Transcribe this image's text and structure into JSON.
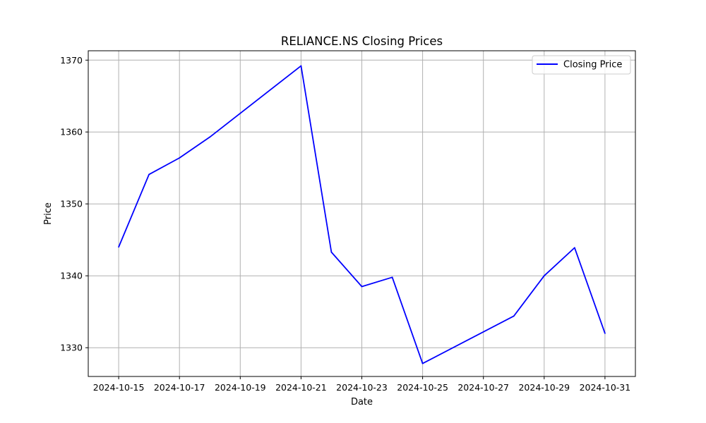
{
  "chart_data": {
    "type": "line",
    "title": "RELIANCE.NS Closing Prices",
    "xlabel": "Date",
    "ylabel": "Price",
    "x_ticks": [
      "2024-10-15",
      "2024-10-17",
      "2024-10-19",
      "2024-10-21",
      "2024-10-23",
      "2024-10-25",
      "2024-10-27",
      "2024-10-29",
      "2024-10-31"
    ],
    "y_ticks": [
      1330,
      1340,
      1350,
      1360,
      1370
    ],
    "xlim": [
      "2024-10-14",
      "2024-11-01"
    ],
    "ylim": [
      1326,
      1371.3
    ],
    "grid": true,
    "legend_position": "top-right",
    "series": [
      {
        "name": "Closing Price",
        "color": "#0000ff",
        "points": [
          {
            "x": "2024-10-15",
            "y": 1344.0
          },
          {
            "x": "2024-10-16",
            "y": 1354.1
          },
          {
            "x": "2024-10-17",
            "y": 1356.4
          },
          {
            "x": "2024-10-18",
            "y": 1359.3
          },
          {
            "x": "2024-10-21",
            "y": 1369.2
          },
          {
            "x": "2024-10-22",
            "y": 1343.3
          },
          {
            "x": "2024-10-23",
            "y": 1338.5
          },
          {
            "x": "2024-10-24",
            "y": 1339.8
          },
          {
            "x": "2024-10-25",
            "y": 1327.8
          },
          {
            "x": "2024-10-28",
            "y": 1334.4
          },
          {
            "x": "2024-10-29",
            "y": 1340.0
          },
          {
            "x": "2024-10-30",
            "y": 1343.9
          },
          {
            "x": "2024-10-31",
            "y": 1332.0
          }
        ]
      }
    ]
  }
}
